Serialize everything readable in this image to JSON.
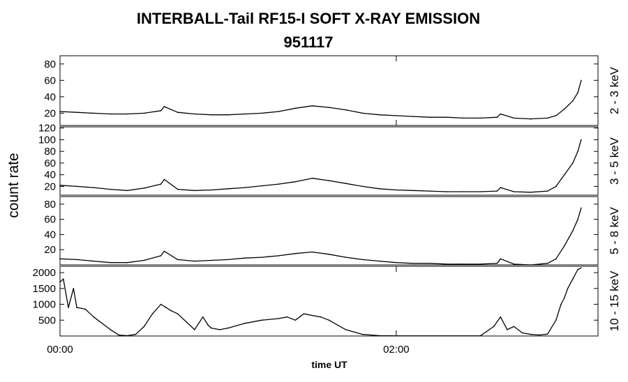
{
  "title": "INTERBALL-Tail RF15-I SOFT X-RAY EMISSION",
  "subtitle": "951117",
  "y_axis_label": "count rate",
  "x_axis_label": "time UT",
  "chart_data": [
    {
      "type": "line",
      "panel": "2 - 3 keV",
      "ylim": [
        5,
        90
      ],
      "yticks": [
        20,
        40,
        60,
        80
      ],
      "xlim": [
        0,
        3.2
      ],
      "xticks": [
        {
          "value": 0,
          "label": "00:00"
        },
        {
          "value": 2,
          "label": "02:00"
        }
      ],
      "series": [
        {
          "name": "2 - 3 keV",
          "x": [
            0,
            0.1,
            0.2,
            0.3,
            0.4,
            0.5,
            0.6,
            0.62,
            0.7,
            0.8,
            0.9,
            1.0,
            1.1,
            1.2,
            1.3,
            1.4,
            1.5,
            1.6,
            1.7,
            1.8,
            1.9,
            2.0,
            2.1,
            2.2,
            2.3,
            2.4,
            2.5,
            2.6,
            2.62,
            2.7,
            2.8,
            2.9,
            2.95,
            3.0,
            3.05,
            3.08,
            3.1
          ],
          "y": [
            22,
            21,
            20,
            19,
            19,
            20,
            23,
            28,
            21,
            19,
            18,
            18,
            19,
            20,
            22,
            26,
            29,
            27,
            24,
            20,
            18,
            17,
            16,
            15,
            15,
            14,
            14,
            15,
            19,
            14,
            13,
            14,
            17,
            25,
            35,
            45,
            60
          ]
        }
      ]
    },
    {
      "type": "line",
      "panel": "3 - 5 keV",
      "ylim": [
        5,
        122
      ],
      "yticks": [
        20,
        40,
        60,
        80,
        100,
        120
      ],
      "xlim": [
        0,
        3.2
      ],
      "series": [
        {
          "name": "3 - 5 keV",
          "x": [
            0,
            0.1,
            0.2,
            0.3,
            0.4,
            0.5,
            0.6,
            0.62,
            0.7,
            0.8,
            0.9,
            1.0,
            1.1,
            1.2,
            1.3,
            1.4,
            1.5,
            1.6,
            1.7,
            1.8,
            1.9,
            2.0,
            2.1,
            2.2,
            2.3,
            2.4,
            2.5,
            2.6,
            2.62,
            2.7,
            2.8,
            2.9,
            2.95,
            3.0,
            3.05,
            3.08,
            3.1
          ],
          "y": [
            22,
            20,
            18,
            15,
            13,
            17,
            24,
            32,
            15,
            13,
            14,
            16,
            18,
            21,
            24,
            28,
            34,
            30,
            25,
            20,
            16,
            14,
            13,
            12,
            11,
            11,
            11,
            12,
            18,
            11,
            10,
            12,
            20,
            40,
            60,
            80,
            100
          ]
        }
      ]
    },
    {
      "type": "line",
      "panel": "5 - 8 keV",
      "ylim": [
        0,
        90
      ],
      "yticks": [
        20,
        40,
        60,
        80
      ],
      "xlim": [
        0,
        3.2
      ],
      "series": [
        {
          "name": "5 - 8 keV",
          "x": [
            0,
            0.1,
            0.2,
            0.3,
            0.4,
            0.5,
            0.6,
            0.62,
            0.7,
            0.8,
            0.9,
            1.0,
            1.1,
            1.2,
            1.3,
            1.4,
            1.5,
            1.6,
            1.7,
            1.8,
            1.9,
            2.0,
            2.1,
            2.2,
            2.3,
            2.4,
            2.5,
            2.6,
            2.62,
            2.7,
            2.8,
            2.9,
            2.95,
            3.0,
            3.05,
            3.08,
            3.1
          ],
          "y": [
            8,
            7,
            5,
            3,
            3,
            6,
            12,
            18,
            7,
            5,
            6,
            7,
            9,
            10,
            12,
            15,
            17,
            14,
            10,
            7,
            5,
            3,
            2,
            2,
            1,
            1,
            1,
            2,
            8,
            1,
            0,
            2,
            8,
            25,
            45,
            60,
            75
          ]
        }
      ]
    },
    {
      "type": "line",
      "panel": "10 - 15 keV",
      "ylim": [
        0,
        2200
      ],
      "yticks": [
        500,
        1000,
        1500,
        2000
      ],
      "xlim": [
        0,
        3.2
      ],
      "xticks": [
        {
          "value": 0,
          "label": "00:00"
        },
        {
          "value": 2,
          "label": "02:00"
        }
      ],
      "series": [
        {
          "name": "10 - 15 keV",
          "x": [
            0,
            0.02,
            0.05,
            0.08,
            0.1,
            0.15,
            0.2,
            0.3,
            0.35,
            0.4,
            0.45,
            0.5,
            0.55,
            0.6,
            0.63,
            0.66,
            0.7,
            0.75,
            0.8,
            0.85,
            0.88,
            0.9,
            0.95,
            1.0,
            1.1,
            1.2,
            1.3,
            1.35,
            1.4,
            1.45,
            1.5,
            1.55,
            1.6,
            1.7,
            1.8,
            1.9,
            2.0,
            2.1,
            2.2,
            2.3,
            2.4,
            2.5,
            2.58,
            2.62,
            2.66,
            2.7,
            2.75,
            2.8,
            2.85,
            2.9,
            2.95,
            2.98,
            3.0,
            3.02,
            3.05,
            3.08,
            3.1
          ],
          "y": [
            1700,
            1800,
            900,
            1500,
            900,
            850,
            600,
            200,
            30,
            10,
            50,
            300,
            700,
            1000,
            900,
            800,
            700,
            450,
            200,
            600,
            350,
            250,
            200,
            250,
            400,
            500,
            550,
            600,
            500,
            700,
            650,
            600,
            500,
            200,
            50,
            10,
            5,
            5,
            5,
            5,
            5,
            5,
            300,
            600,
            200,
            300,
            100,
            50,
            30,
            60,
            500,
            1000,
            1200,
            1500,
            1800,
            2100,
            2150
          ]
        }
      ]
    }
  ]
}
